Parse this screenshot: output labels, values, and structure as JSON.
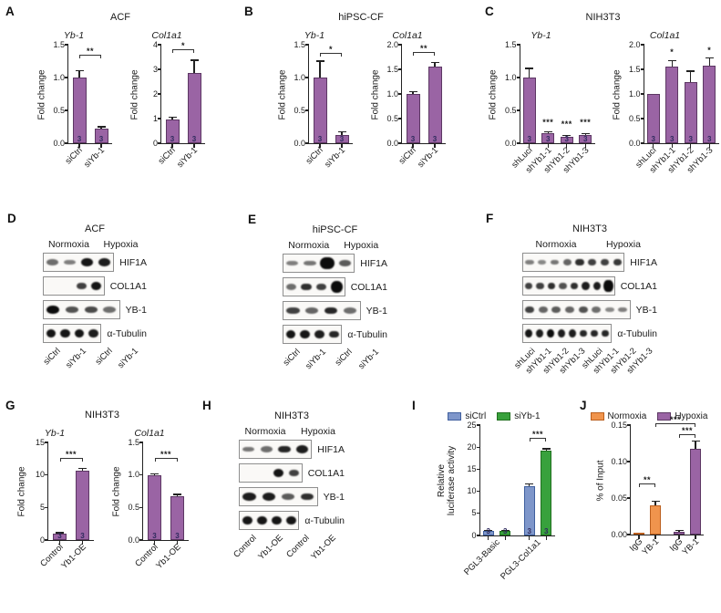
{
  "colors": {
    "purple": "#9a64a4",
    "purple_dark": "#5c3763",
    "blue": "#7e96ca",
    "blue_dark": "#3f5f9e",
    "green": "#38a13c",
    "green_dark": "#20701f",
    "orange": "#f0944d",
    "orange_dark": "#bb5f1e",
    "n_text": "#2f2a5e",
    "axis": "#222222"
  },
  "chart_data": [
    {
      "panel": "A",
      "title": "ACF",
      "type": "bar",
      "charts": [
        {
          "title": "Yb-1",
          "ylabel": "Fold change",
          "ylim": [
            0,
            1.5
          ],
          "yticks": [
            {
              "v": 0,
              "t": "0.0"
            },
            {
              "v": 0.5,
              "t": "0.5"
            },
            {
              "v": 1,
              "t": "1.0"
            },
            {
              "v": 1.5,
              "t": "1.5"
            }
          ],
          "bars": [
            {
              "value": 1.0,
              "err": 0.1,
              "n": "3",
              "color": "purple"
            },
            {
              "value": 0.22,
              "err": 0.02,
              "n": "3",
              "color": "purple"
            }
          ],
          "xcats": [
            {
              "label": "siCtrl",
              "at": 0
            },
            {
              "label": "siYb-1",
              "at": 1
            }
          ],
          "sig": [
            {
              "type": "bracket",
              "from": 0,
              "to": 1,
              "y": 1.29,
              "label": "**"
            }
          ]
        },
        {
          "title": "Col1a1",
          "ylabel": "Fold change",
          "ylim": [
            0,
            4
          ],
          "yticks": [
            {
              "v": 0,
              "t": "0"
            },
            {
              "v": 1,
              "t": "1"
            },
            {
              "v": 2,
              "t": "2"
            },
            {
              "v": 3,
              "t": "3"
            },
            {
              "v": 4,
              "t": "4"
            }
          ],
          "bars": [
            {
              "value": 0.97,
              "err": 0.06,
              "n": "3",
              "color": "purple"
            },
            {
              "value": 2.85,
              "err": 0.5,
              "n": "3",
              "color": "purple"
            }
          ],
          "xcats": [
            {
              "label": "siCtrl",
              "at": 0
            },
            {
              "label": "siYb-1",
              "at": 1
            }
          ],
          "sig": [
            {
              "type": "bracket",
              "from": 0,
              "to": 1,
              "y": 3.67,
              "label": "*"
            }
          ]
        }
      ]
    },
    {
      "panel": "B",
      "title": "hiPSC-CF",
      "type": "bar",
      "charts": [
        {
          "title": "Yb-1",
          "ylabel": "Fold change",
          "ylim": [
            0,
            1.5
          ],
          "yticks": [
            {
              "v": 0,
              "t": "0.0"
            },
            {
              "v": 0.5,
              "t": "0.5"
            },
            {
              "v": 1,
              "t": "1.0"
            },
            {
              "v": 1.5,
              "t": "1.5"
            }
          ],
          "bars": [
            {
              "value": 1.0,
              "err": 0.24,
              "n": "3",
              "color": "purple"
            },
            {
              "value": 0.13,
              "err": 0.03,
              "n": "3",
              "color": "purple"
            }
          ],
          "xcats": [
            {
              "label": "siCtrl",
              "at": 0
            },
            {
              "label": "siYb-1",
              "at": 1
            }
          ],
          "sig": [
            {
              "type": "bracket",
              "from": 0,
              "to": 1,
              "y": 1.32,
              "label": "*"
            }
          ]
        },
        {
          "title": "Col1a1",
          "ylabel": "Fold change",
          "ylim": [
            0,
            2
          ],
          "yticks": [
            {
              "v": 0,
              "t": "0.0"
            },
            {
              "v": 0.5,
              "t": "0.5"
            },
            {
              "v": 1,
              "t": "1.0"
            },
            {
              "v": 1.5,
              "t": "1.5"
            },
            {
              "v": 2,
              "t": "2.0"
            }
          ],
          "bars": [
            {
              "value": 1.0,
              "err": 0.03,
              "n": "3",
              "color": "purple"
            },
            {
              "value": 1.56,
              "err": 0.07,
              "n": "3",
              "color": "purple"
            }
          ],
          "xcats": [
            {
              "label": "siCtrl",
              "at": 0
            },
            {
              "label": "siYb-1",
              "at": 1
            }
          ],
          "sig": [
            {
              "type": "bracket",
              "from": 0,
              "to": 1,
              "y": 1.77,
              "label": "**"
            }
          ]
        }
      ]
    },
    {
      "panel": "C",
      "title": "NIH3T3",
      "type": "bar",
      "charts": [
        {
          "title": "Yb-1",
          "ylabel": "Fold change",
          "ylim": [
            0,
            1.5
          ],
          "yticks": [
            {
              "v": 0,
              "t": "0.0"
            },
            {
              "v": 0.5,
              "t": "0.5"
            },
            {
              "v": 1,
              "t": "1.0"
            },
            {
              "v": 1.5,
              "t": "1.5"
            }
          ],
          "bars": [
            {
              "value": 1.0,
              "err": 0.13,
              "n": "3",
              "color": "purple"
            },
            {
              "value": 0.15,
              "err": 0.015,
              "n": "3",
              "color": "purple"
            },
            {
              "value": 0.1,
              "err": 0.01,
              "n": "3",
              "color": "purple"
            },
            {
              "value": 0.12,
              "err": 0.015,
              "n": "3",
              "color": "purple"
            }
          ],
          "xcats": [
            {
              "label": "shLuci",
              "at": 0
            },
            {
              "label": "shYb1-1",
              "at": 1
            },
            {
              "label": "shYb1-2",
              "at": 2
            },
            {
              "label": "shYb1-3",
              "at": 3
            }
          ],
          "sig": [
            {
              "type": "star",
              "at": 1,
              "y": 0.27,
              "label": "***"
            },
            {
              "type": "star",
              "at": 2,
              "y": 0.24,
              "label": "***"
            },
            {
              "type": "star",
              "at": 3,
              "y": 0.26,
              "label": "***"
            }
          ]
        },
        {
          "title": "Col1a1",
          "ylabel": "Fold change",
          "ylim": [
            0,
            2
          ],
          "yticks": [
            {
              "v": 0,
              "t": "0.0"
            },
            {
              "v": 0.5,
              "t": "0.5"
            },
            {
              "v": 1,
              "t": "1.0"
            },
            {
              "v": 1.5,
              "t": "1.5"
            },
            {
              "v": 2,
              "t": "2.0"
            }
          ],
          "bars": [
            {
              "value": 1.0,
              "err": 0,
              "n": "3",
              "color": "purple"
            },
            {
              "value": 1.55,
              "err": 0.12,
              "n": "3",
              "color": "purple"
            },
            {
              "value": 1.25,
              "err": 0.2,
              "n": "3",
              "color": "purple"
            },
            {
              "value": 1.57,
              "err": 0.15,
              "n": "3",
              "color": "purple"
            }
          ],
          "xcats": [
            {
              "label": "shLuci",
              "at": 0
            },
            {
              "label": "shYb1-1",
              "at": 1
            },
            {
              "label": "shYb1-2",
              "at": 2
            },
            {
              "label": "shYb1-3",
              "at": 3
            }
          ],
          "sig": [
            {
              "type": "star",
              "at": 1,
              "y": 1.78,
              "label": "*"
            },
            {
              "type": "star",
              "at": 3,
              "y": 1.82,
              "label": "*"
            }
          ]
        }
      ]
    },
    {
      "panel": "G",
      "title": "NIH3T3",
      "type": "bar",
      "charts": [
        {
          "title": "Yb-1",
          "ylabel": "Fold change",
          "ylim": [
            0,
            15
          ],
          "yticks": [
            {
              "v": 0,
              "t": "0"
            },
            {
              "v": 5,
              "t": "5"
            },
            {
              "v": 10,
              "t": "10"
            },
            {
              "v": 15,
              "t": "15"
            }
          ],
          "bars": [
            {
              "value": 1.0,
              "err": 0.05,
              "n": "3",
              "color": "purple"
            },
            {
              "value": 10.7,
              "err": 0.25,
              "n": "3",
              "color": "purple"
            }
          ],
          "xcats": [
            {
              "label": "Control",
              "at": 0
            },
            {
              "label": "Yb1-OE",
              "at": 1
            }
          ],
          "sig": [
            {
              "type": "bracket",
              "from": 0,
              "to": 1,
              "y": 12.0,
              "label": "***"
            }
          ]
        },
        {
          "title": "Col1a1",
          "ylabel": "Fold change",
          "ylim": [
            0,
            1.5
          ],
          "yticks": [
            {
              "v": 0,
              "t": "0.0"
            },
            {
              "v": 0.5,
              "t": "0.5"
            },
            {
              "v": 1,
              "t": "1.0"
            },
            {
              "v": 1.5,
              "t": "1.5"
            }
          ],
          "bars": [
            {
              "value": 1.0,
              "err": 0.01,
              "n": "3",
              "color": "purple"
            },
            {
              "value": 0.67,
              "err": 0.02,
              "n": "3",
              "color": "purple"
            }
          ],
          "xcats": [
            {
              "label": "Control",
              "at": 0
            },
            {
              "label": "Yb1-OE",
              "at": 1
            }
          ],
          "sig": [
            {
              "type": "bracket",
              "from": 0,
              "to": 1,
              "y": 1.2,
              "label": "***"
            }
          ]
        }
      ]
    },
    {
      "panel": "I",
      "title": "",
      "type": "bar",
      "legend": [
        {
          "label": "siCtrl",
          "color": "blue"
        },
        {
          "label": "siYb-1",
          "color": "green"
        }
      ],
      "charts": [
        {
          "ylabel": "Relative\nluciferase activity",
          "ylim": [
            0,
            25
          ],
          "yticks": [
            {
              "v": 0,
              "t": "0"
            },
            {
              "v": 5,
              "t": "5"
            },
            {
              "v": 10,
              "t": "10"
            },
            {
              "v": 15,
              "t": "15"
            },
            {
              "v": 20,
              "t": "20"
            },
            {
              "v": 25,
              "t": "25"
            }
          ],
          "bars": [
            {
              "value": 1.0,
              "err": 0.05,
              "n": "3",
              "color": "blue"
            },
            {
              "value": 1.0,
              "err": 0.05,
              "n": "3",
              "color": "green"
            },
            {
              "value": 11.2,
              "err": 0.3,
              "n": "3",
              "color": "blue"
            },
            {
              "value": 19.2,
              "err": 0.3,
              "n": "3",
              "color": "green"
            }
          ],
          "gap_after": [
            1
          ],
          "xcats": [
            {
              "label": "PGL3-Basic",
              "at": 0.5
            },
            {
              "label": "PGL3-Col1a1",
              "at": 2.5
            }
          ],
          "sig": [
            {
              "type": "bracket",
              "from": 2,
              "to": 3,
              "y": 21.3,
              "label": "***"
            }
          ]
        }
      ]
    },
    {
      "panel": "J",
      "title": "",
      "type": "bar",
      "legend": [
        {
          "label": "Normoxia",
          "color": "orange"
        },
        {
          "label": "Hypoxia",
          "color": "purple"
        }
      ],
      "charts": [
        {
          "ylabel": "% of Input",
          "ylim": [
            0,
            0.15
          ],
          "yticks": [
            {
              "v": 0,
              "t": "0.00"
            },
            {
              "v": 0.05,
              "t": "0.05"
            },
            {
              "v": 0.1,
              "t": "0.10"
            },
            {
              "v": 0.15,
              "t": "0.15"
            }
          ],
          "bars": [
            {
              "value": 0.003,
              "err": 0,
              "color": "orange"
            },
            {
              "value": 0.04,
              "err": 0.005,
              "color": "orange"
            },
            {
              "value": 0.004,
              "err": 0.001,
              "color": "purple"
            },
            {
              "value": 0.117,
              "err": 0.01,
              "color": "purple"
            }
          ],
          "gap_after": [
            1
          ],
          "xcats": [
            {
              "label": "IgG",
              "at": 0
            },
            {
              "label": "YB-1",
              "at": 1
            },
            {
              "label": "IgG",
              "at": 2
            },
            {
              "label": "YB-1",
              "at": 3
            }
          ],
          "sig": [
            {
              "type": "bracket",
              "from": 0,
              "to": 1,
              "y": 0.065,
              "label": "**"
            },
            {
              "type": "bracket",
              "from": 2,
              "to": 3,
              "y": 0.133,
              "label": "***"
            },
            {
              "type": "bracket",
              "from": 1,
              "to": 3,
              "y": 0.148,
              "label": "***"
            }
          ]
        }
      ]
    }
  ],
  "blots": [
    {
      "panel": "D",
      "title": "ACF",
      "conditions": [
        "Normoxia",
        "Hypoxia"
      ],
      "lanes": [
        "siCtrl",
        "siYb-1",
        "siCtrl",
        "siYb-1"
      ],
      "rows": [
        {
          "name": "HIF1A",
          "bands": [
            0.45,
            0.35,
            0.95,
            0.9
          ]
        },
        {
          "name": "COL1A1",
          "bands": [
            0,
            0,
            0.7,
            0.95
          ]
        },
        {
          "name": "YB-1",
          "bands": [
            1.0,
            0.6,
            0.65,
            0.45
          ]
        },
        {
          "name": "α-Tubulin",
          "bands": [
            0.95,
            0.95,
            0.95,
            0.9
          ]
        }
      ]
    },
    {
      "panel": "E",
      "title": "hiPSC-CF",
      "conditions": [
        "Normoxia",
        "Hypoxia"
      ],
      "lanes": [
        "siCtrl",
        "siYb-1",
        "siCtrl",
        "siYb-1"
      ],
      "rows": [
        {
          "name": "HIF1A",
          "bands": [
            0.35,
            0.4,
            1.15,
            0.55
          ]
        },
        {
          "name": "COL1A1",
          "bands": [
            0.45,
            0.8,
            0.7,
            1.3
          ]
        },
        {
          "name": "YB-1",
          "bands": [
            0.7,
            0.5,
            0.85,
            0.45
          ]
        },
        {
          "name": "α-Tubulin",
          "bands": [
            0.95,
            0.95,
            0.9,
            0.85
          ]
        }
      ]
    },
    {
      "panel": "F",
      "title": "NIH3T3",
      "conditions": [
        "Normoxia",
        "Hypoxia"
      ],
      "lanes": [
        "shLuci",
        "shYb1-1",
        "shYb1-2",
        "shYb1-3",
        "shLuci",
        "shYb1-1",
        "shYb1-2",
        "shYb1-3"
      ],
      "rows": [
        {
          "name": "HIF1A",
          "bands": [
            0.35,
            0.3,
            0.4,
            0.5,
            0.8,
            0.7,
            0.7,
            0.75
          ]
        },
        {
          "name": "COL1A1",
          "bands": [
            0.7,
            0.7,
            0.8,
            0.6,
            0.8,
            0.9,
            0.9,
            1.3
          ]
        },
        {
          "name": "YB-1",
          "bands": [
            0.7,
            0.5,
            0.55,
            0.5,
            0.6,
            0.45,
            0.3,
            0.35
          ]
        },
        {
          "name": "α-Tubulin",
          "bands": [
            0.95,
            0.9,
            1.0,
            0.9,
            0.9,
            0.85,
            0.85,
            0.85
          ]
        }
      ]
    },
    {
      "panel": "H",
      "title": "NIH3T3",
      "conditions": [
        "Normoxia",
        "Hypoxia"
      ],
      "lanes": [
        "Control",
        "Yb1-OE",
        "Control",
        "Yb1-OE"
      ],
      "rows": [
        {
          "name": "HIF1A",
          "bands": [
            0.4,
            0.45,
            0.85,
            0.9
          ]
        },
        {
          "name": "COL1A1",
          "bands": [
            0,
            0,
            0.95,
            0.7
          ]
        },
        {
          "name": "YB-1",
          "bands": [
            0.9,
            0.9,
            0.55,
            0.8
          ]
        },
        {
          "name": "α-Tubulin",
          "bands": [
            0.95,
            0.95,
            0.95,
            0.95
          ]
        }
      ]
    }
  ]
}
